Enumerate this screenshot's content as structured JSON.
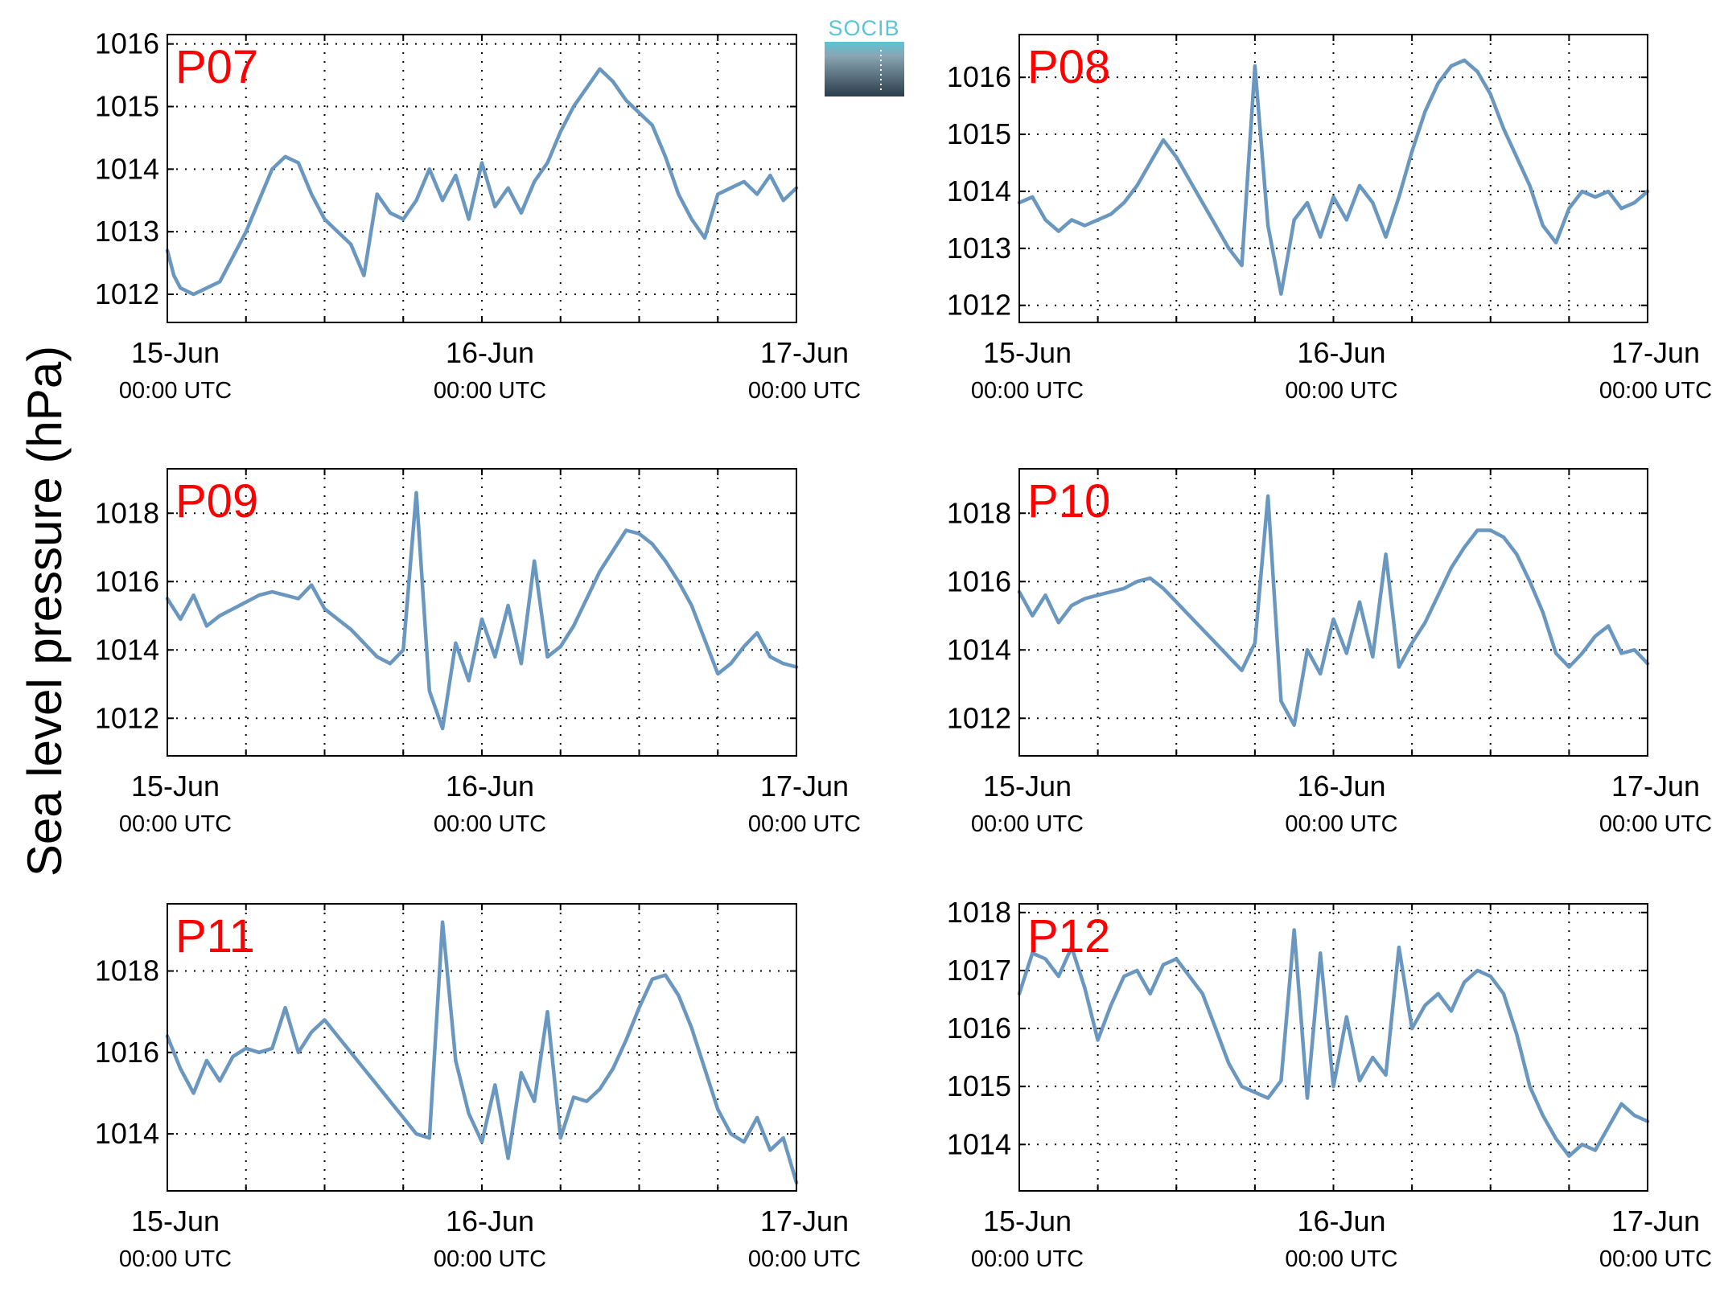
{
  "ylabel": "Sea level pressure (hPa)",
  "logo_text": "SOCIB",
  "colors": {
    "line": "#6a97bf",
    "panel_label": "#ff0000",
    "grid": "#000000"
  },
  "x_ticks": [
    {
      "value": 0,
      "label": "15-Jun",
      "sublabel": "00:00 UTC"
    },
    {
      "value": 24,
      "label": "16-Jun",
      "sublabel": "00:00 UTC"
    },
    {
      "value": 48,
      "label": "17-Jun",
      "sublabel": "00:00 UTC"
    }
  ],
  "chart_data": [
    {
      "type": "line",
      "label": "P07",
      "xlim": [
        0,
        48
      ],
      "ylim": [
        1011.55,
        1016.15
      ],
      "yticks": [
        1012,
        1013,
        1014,
        1015,
        1016
      ],
      "grid": true,
      "x": [
        0,
        0.5,
        1,
        1.5,
        2,
        3,
        4,
        5,
        6,
        7,
        8,
        9,
        10,
        11,
        12,
        13,
        14,
        15,
        16,
        17,
        18,
        19,
        20,
        21,
        22,
        23,
        24,
        25,
        26,
        27,
        28,
        29,
        30,
        31,
        32,
        33,
        34,
        35,
        36,
        37,
        38,
        39,
        40,
        41,
        42,
        43,
        44,
        45,
        46,
        47,
        48
      ],
      "y": [
        1012.7,
        1012.3,
        1012.1,
        1012.05,
        1012.0,
        1012.1,
        1012.2,
        1012.6,
        1013.0,
        1013.5,
        1014.0,
        1014.2,
        1014.1,
        1013.6,
        1013.2,
        1013.0,
        1012.8,
        1012.3,
        1013.6,
        1013.3,
        1013.2,
        1013.5,
        1014.0,
        1013.5,
        1013.9,
        1013.2,
        1014.1,
        1013.4,
        1013.7,
        1013.3,
        1013.8,
        1014.1,
        1014.6,
        1015.0,
        1015.3,
        1015.6,
        1015.4,
        1015.1,
        1014.9,
        1014.7,
        1014.2,
        1013.6,
        1013.2,
        1012.9,
        1013.6,
        1013.7,
        1013.8,
        1013.6,
        1013.9,
        1013.5,
        1013.7
      ]
    },
    {
      "type": "line",
      "label": "P08",
      "xlim": [
        0,
        48
      ],
      "ylim": [
        1011.7,
        1016.75
      ],
      "yticks": [
        1012,
        1013,
        1014,
        1015,
        1016
      ],
      "grid": true,
      "x": [
        0,
        1,
        2,
        3,
        4,
        5,
        6,
        7,
        8,
        9,
        10,
        11,
        12,
        13,
        14,
        15,
        16,
        17,
        18,
        19,
        20,
        21,
        22,
        23,
        24,
        25,
        26,
        27,
        28,
        29,
        30,
        31,
        32,
        33,
        34,
        35,
        36,
        37,
        38,
        39,
        40,
        41,
        42,
        43,
        44,
        45,
        46,
        47,
        48
      ],
      "y": [
        1013.8,
        1013.9,
        1013.5,
        1013.3,
        1013.5,
        1013.4,
        1013.5,
        1013.6,
        1013.8,
        1014.1,
        1014.5,
        1014.9,
        1014.6,
        1014.2,
        1013.8,
        1013.4,
        1013.0,
        1012.7,
        1016.2,
        1013.4,
        1012.2,
        1013.5,
        1013.8,
        1013.2,
        1013.9,
        1013.5,
        1014.1,
        1013.8,
        1013.2,
        1013.9,
        1014.7,
        1015.4,
        1015.9,
        1016.2,
        1016.3,
        1016.1,
        1015.7,
        1015.1,
        1014.6,
        1014.1,
        1013.4,
        1013.1,
        1013.7,
        1014.0,
        1013.9,
        1014.0,
        1013.7,
        1013.8,
        1014.0
      ]
    },
    {
      "type": "line",
      "label": "P09",
      "xlim": [
        0,
        48
      ],
      "ylim": [
        1010.9,
        1019.3
      ],
      "yticks": [
        1012,
        1014,
        1016,
        1018
      ],
      "grid": true,
      "x": [
        0,
        1,
        2,
        3,
        4,
        5,
        6,
        7,
        8,
        9,
        10,
        11,
        12,
        13,
        14,
        15,
        16,
        17,
        18,
        19,
        20,
        21,
        22,
        23,
        24,
        25,
        26,
        27,
        28,
        29,
        30,
        31,
        32,
        33,
        34,
        35,
        36,
        37,
        38,
        39,
        40,
        41,
        42,
        43,
        44,
        45,
        46,
        47,
        48
      ],
      "y": [
        1015.5,
        1014.9,
        1015.6,
        1014.7,
        1015.0,
        1015.2,
        1015.4,
        1015.6,
        1015.7,
        1015.6,
        1015.5,
        1015.9,
        1015.2,
        1014.9,
        1014.6,
        1014.2,
        1013.8,
        1013.6,
        1014.0,
        1018.6,
        1012.8,
        1011.7,
        1014.2,
        1013.1,
        1014.9,
        1013.8,
        1015.3,
        1013.6,
        1016.6,
        1013.8,
        1014.1,
        1014.7,
        1015.5,
        1016.3,
        1016.9,
        1017.5,
        1017.4,
        1017.1,
        1016.6,
        1016.0,
        1015.3,
        1014.3,
        1013.3,
        1013.6,
        1014.1,
        1014.5,
        1013.8,
        1013.6,
        1013.5
      ]
    },
    {
      "type": "line",
      "label": "P10",
      "xlim": [
        0,
        48
      ],
      "ylim": [
        1010.9,
        1019.3
      ],
      "yticks": [
        1012,
        1014,
        1016,
        1018
      ],
      "grid": true,
      "x": [
        0,
        1,
        2,
        3,
        4,
        5,
        6,
        7,
        8,
        9,
        10,
        11,
        12,
        13,
        14,
        15,
        16,
        17,
        18,
        19,
        20,
        21,
        22,
        23,
        24,
        25,
        26,
        27,
        28,
        29,
        30,
        31,
        32,
        33,
        34,
        35,
        36,
        37,
        38,
        39,
        40,
        41,
        42,
        43,
        44,
        45,
        46,
        47,
        48
      ],
      "y": [
        1015.7,
        1015.0,
        1015.6,
        1014.8,
        1015.3,
        1015.5,
        1015.6,
        1015.7,
        1015.8,
        1016.0,
        1016.1,
        1015.8,
        1015.4,
        1015.0,
        1014.6,
        1014.2,
        1013.8,
        1013.4,
        1014.2,
        1018.5,
        1012.5,
        1011.8,
        1014.0,
        1013.3,
        1014.9,
        1013.9,
        1015.4,
        1013.8,
        1016.8,
        1013.5,
        1014.2,
        1014.8,
        1015.6,
        1016.4,
        1017.0,
        1017.5,
        1017.5,
        1017.3,
        1016.8,
        1016.0,
        1015.1,
        1013.9,
        1013.5,
        1013.9,
        1014.4,
        1014.7,
        1013.9,
        1014.0,
        1013.6
      ]
    },
    {
      "type": "line",
      "label": "P11",
      "xlim": [
        0,
        48
      ],
      "ylim": [
        1012.6,
        1019.65
      ],
      "yticks": [
        1014,
        1016,
        1018
      ],
      "grid": true,
      "x": [
        0,
        1,
        2,
        3,
        4,
        5,
        6,
        7,
        8,
        9,
        10,
        11,
        12,
        13,
        14,
        15,
        16,
        17,
        18,
        19,
        20,
        21,
        22,
        23,
        24,
        25,
        26,
        27,
        28,
        29,
        30,
        31,
        32,
        33,
        34,
        35,
        36,
        37,
        38,
        39,
        40,
        41,
        42,
        43,
        44,
        45,
        46,
        47,
        48
      ],
      "y": [
        1016.4,
        1015.6,
        1015.0,
        1015.8,
        1015.3,
        1015.9,
        1016.1,
        1016.0,
        1016.1,
        1017.1,
        1016.0,
        1016.5,
        1016.8,
        1016.4,
        1016.0,
        1015.6,
        1015.2,
        1014.8,
        1014.4,
        1014.0,
        1013.9,
        1019.2,
        1015.8,
        1014.5,
        1013.8,
        1015.2,
        1013.4,
        1015.5,
        1014.8,
        1017.0,
        1013.9,
        1014.9,
        1014.8,
        1015.1,
        1015.6,
        1016.3,
        1017.1,
        1017.8,
        1017.9,
        1017.4,
        1016.6,
        1015.6,
        1014.6,
        1014.0,
        1013.8,
        1014.4,
        1013.6,
        1013.9,
        1012.8
      ]
    },
    {
      "type": "line",
      "label": "P12",
      "xlim": [
        0,
        48
      ],
      "ylim": [
        1013.2,
        1018.15
      ],
      "yticks": [
        1014,
        1015,
        1016,
        1017,
        1018
      ],
      "grid": true,
      "x": [
        0,
        1,
        2,
        3,
        4,
        5,
        6,
        7,
        8,
        9,
        10,
        11,
        12,
        13,
        14,
        15,
        16,
        17,
        18,
        19,
        20,
        21,
        22,
        23,
        24,
        25,
        26,
        27,
        28,
        29,
        30,
        31,
        32,
        33,
        34,
        35,
        36,
        37,
        38,
        39,
        40,
        41,
        42,
        43,
        44,
        45,
        46,
        47,
        48
      ],
      "y": [
        1016.6,
        1017.3,
        1017.2,
        1016.9,
        1017.4,
        1016.7,
        1015.8,
        1016.4,
        1016.9,
        1017.0,
        1016.6,
        1017.1,
        1017.2,
        1016.9,
        1016.6,
        1016.0,
        1015.4,
        1015.0,
        1014.9,
        1014.8,
        1015.1,
        1017.7,
        1014.8,
        1017.3,
        1015.0,
        1016.2,
        1015.1,
        1015.5,
        1015.2,
        1017.4,
        1016.0,
        1016.4,
        1016.6,
        1016.3,
        1016.8,
        1017.0,
        1016.9,
        1016.6,
        1015.9,
        1015.0,
        1014.5,
        1014.1,
        1013.8,
        1014.0,
        1013.9,
        1014.3,
        1014.7,
        1014.5,
        1014.4
      ]
    }
  ]
}
